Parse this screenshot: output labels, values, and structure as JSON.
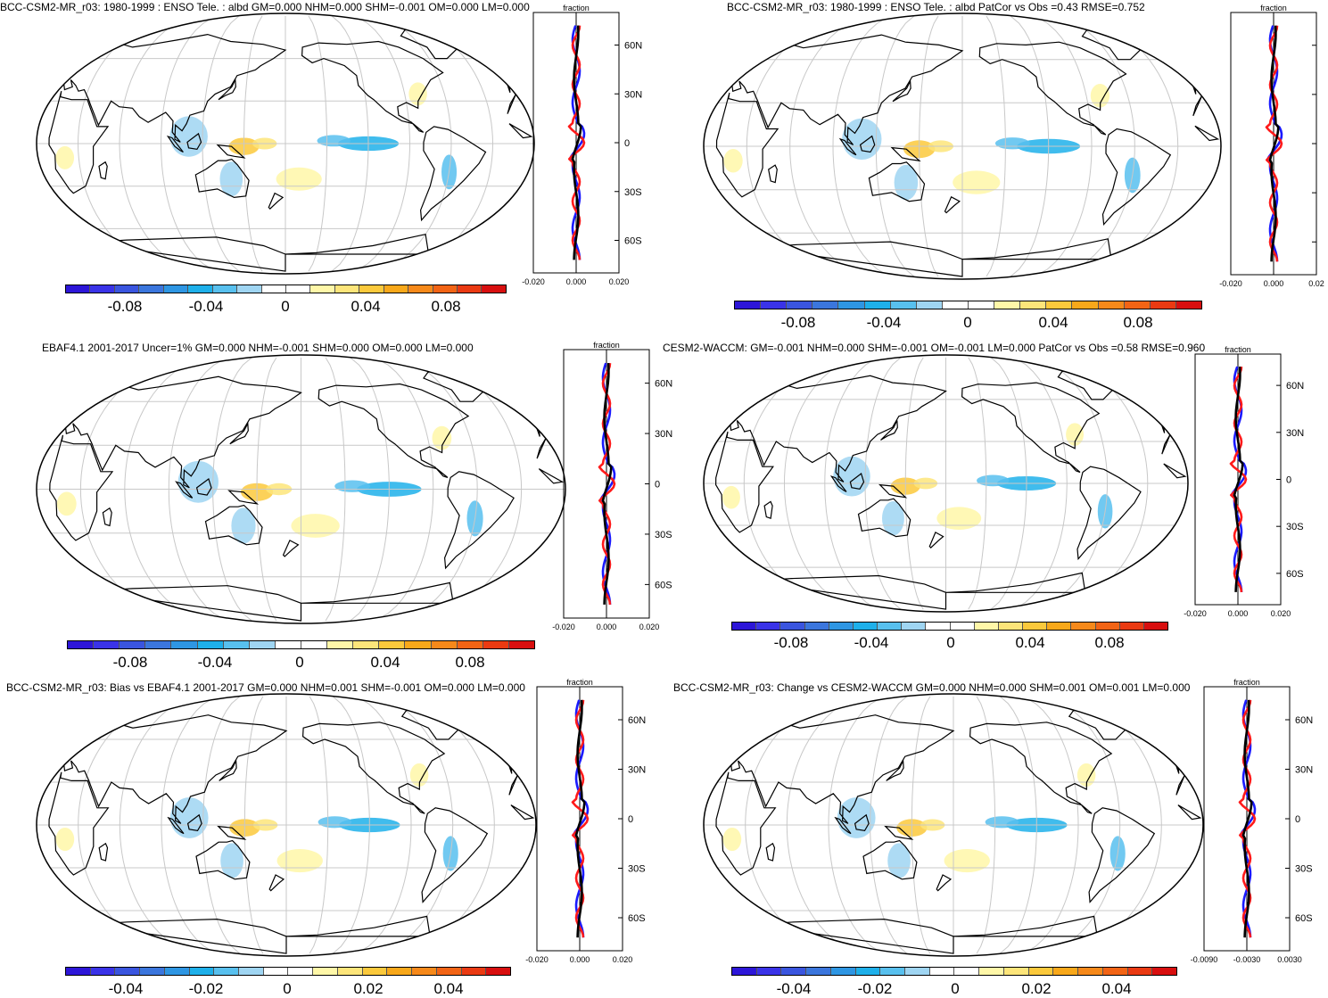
{
  "palette": [
    "#2d16d8",
    "#3a33e8",
    "#3a55df",
    "#3b76dd",
    "#2e96e3",
    "#1eb0ea",
    "#58c0ee",
    "#9fd5f2",
    "#ffffff",
    "#ffffff",
    "#fff7a8",
    "#fde57a",
    "#fbc93c",
    "#f8a81a",
    "#f6891a",
    "#f26415",
    "#ea3a12",
    "#d80f0f"
  ],
  "land_fill": "#ffffff",
  "panels": [
    {
      "title": "BCC-CSM2-MR_r03: 1980-1999 : ENSO Tele. : albd GM=0.000 NHM=0.000 SHM=-0.001 OM=0.000 LM=0.000",
      "profile_title": "fraction",
      "lat_labels": [
        "60N",
        "30N",
        "0",
        "30S",
        "60S"
      ],
      "x_ticks": [
        "-0.020",
        "0.000",
        "0.020"
      ],
      "colorbar_labels": [
        "-0.08",
        "-0.04",
        "0",
        "0.04",
        "0.08"
      ]
    },
    {
      "title": "BCC-CSM2-MR_r03: 1980-1999 : ENSO Tele. : albd PatCor vs Obs =0.43 RMSE=0.752",
      "profile_title": "fraction",
      "lat_labels": [],
      "x_ticks": [
        "-0.020",
        "0.000",
        "0.02"
      ],
      "colorbar_labels": [
        "-0.08",
        "-0.04",
        "0",
        "0.04",
        "0.08"
      ]
    },
    {
      "title": "EBAF4.1 2001-2017 Uncer=1% GM=0.000 NHM=-0.001 SHM=0.000 OM=0.000 LM=0.000",
      "profile_title": "fraction",
      "lat_labels": [
        "60N",
        "30N",
        "0",
        "30S",
        "60S"
      ],
      "x_ticks": [
        "-0.020",
        "0.000",
        "0.020"
      ],
      "colorbar_labels": [
        "-0.08",
        "-0.04",
        "0",
        "0.04",
        "0.08"
      ]
    },
    {
      "title": "CESM2-WACCM: GM=-0.001 NHM=0.000 SHM=-0.001 OM=-0.001 LM=0.000 PatCor vs Obs =0.58 RMSE=0.960",
      "profile_title": "fraction",
      "lat_labels": [
        "60N",
        "30N",
        "0",
        "30S",
        "60S"
      ],
      "x_ticks": [
        "-0.020",
        "0.000",
        "0.020"
      ],
      "colorbar_labels": [
        "-0.08",
        "-0.04",
        "0",
        "0.04",
        "0.08"
      ]
    },
    {
      "title": "BCC-CSM2-MR_r03: Bias vs EBAF4.1 2001-2017 GM=0.000 NHM=0.001 SHM=-0.001 OM=0.000 LM=0.000",
      "profile_title": "fraction",
      "lat_labels": [
        "60N",
        "30N",
        "0",
        "30S",
        "60S"
      ],
      "x_ticks": [
        "-0.020",
        "0.000",
        "0.020"
      ],
      "colorbar_labels": [
        "-0.04",
        "-0.02",
        "0",
        "0.02",
        "0.04"
      ]
    },
    {
      "title": "BCC-CSM2-MR_r03: Change vs CESM2-WACCM GM=0.000 NHM=0.000 SHM=0.001 OM=0.001 LM=0.000",
      "profile_title": "fraction",
      "lat_labels": [
        "60N",
        "30N",
        "0",
        "30S",
        "60S"
      ],
      "x_ticks": [
        "-0.0090",
        "-0.0030",
        "0.0030"
      ],
      "colorbar_labels": [
        "-0.04",
        "-0.02",
        "0",
        "0.02",
        "0.04"
      ]
    }
  ]
}
